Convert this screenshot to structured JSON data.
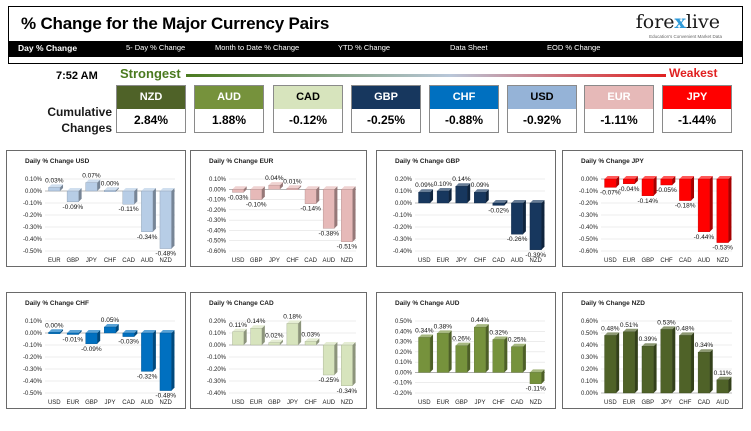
{
  "header": {
    "title": "% Change for the Major Currency Pairs"
  },
  "logo": {
    "brand_prefix": "fore",
    "brand_x": "x",
    "brand_suffix": "live",
    "tagline": "Education's Convenient Market Data"
  },
  "tabs": [
    {
      "label": "Day % Change",
      "active": true
    },
    {
      "label": "5- Day % Change",
      "active": false
    },
    {
      "label": "Month to Date % Change",
      "active": false
    },
    {
      "label": "YTD % Change",
      "active": false
    },
    {
      "label": "Data Sheet",
      "active": false
    },
    {
      "label": "EOD % Change",
      "active": false
    }
  ],
  "time": "7:52 AM",
  "strongest_label": "Strongest",
  "weakest_label": "Weakest",
  "cumulative_label_1": "Cumulative",
  "cumulative_label_2": "Changes",
  "cumulative": [
    {
      "code": "NZD",
      "value": "2.84%",
      "bg": "#4f6228",
      "fg": "#ffffff"
    },
    {
      "code": "AUD",
      "value": "1.88%",
      "bg": "#76923c",
      "fg": "#ffffff"
    },
    {
      "code": "CAD",
      "value": "-0.12%",
      "bg": "#d7e4bd",
      "fg": "#000000"
    },
    {
      "code": "GBP",
      "value": "-0.25%",
      "bg": "#17375e",
      "fg": "#ffffff"
    },
    {
      "code": "CHF",
      "value": "-0.88%",
      "bg": "#0070c0",
      "fg": "#ffffff"
    },
    {
      "code": "USD",
      "value": "-0.92%",
      "bg": "#95b3d7",
      "fg": "#000000"
    },
    {
      "code": "EUR",
      "value": "-1.11%",
      "bg": "#e6b9b8",
      "fg": "#ffffff"
    },
    {
      "code": "JPY",
      "value": "-1.44%",
      "bg": "#ff0000",
      "fg": "#ffffff"
    }
  ],
  "chart_data": [
    {
      "type": "bar",
      "title": "Daily % Change USD",
      "color": "#b7cde6",
      "categories": [
        "EUR",
        "GBP",
        "JPY",
        "CHF",
        "CAD",
        "AUD",
        "NZD"
      ],
      "values": [
        0.03,
        -0.09,
        0.07,
        0.0,
        -0.11,
        -0.34,
        -0.48
      ],
      "labels": [
        "0.03%",
        "-0.09%",
        "0.07%",
        "0.00%",
        "-0.11%",
        "-0.34%",
        "-0.48%"
      ],
      "ylim": [
        -0.5,
        0.1
      ],
      "ytick_labels": [
        "0.10%",
        "0.00%",
        "-0.10%",
        "-0.20%",
        "-0.30%",
        "-0.40%",
        "-0.50%"
      ]
    },
    {
      "type": "bar",
      "title": "Daily % Change EUR",
      "color": "#e6b9b8",
      "categories": [
        "USD",
        "GBP",
        "JPY",
        "CHF",
        "CAD",
        "AUD",
        "NZD"
      ],
      "values": [
        -0.03,
        -0.1,
        0.04,
        0.01,
        -0.14,
        -0.38,
        -0.51
      ],
      "labels": [
        "-0.03%",
        "-0.10%",
        "0.04%",
        "0.01%",
        "-0.14%",
        "-0.38%",
        "-0.51%"
      ],
      "ylim": [
        -0.6,
        0.1
      ],
      "ytick_labels": [
        "0.10%",
        "0.00%",
        "-0.10%",
        "-0.20%",
        "-0.30%",
        "-0.40%",
        "-0.50%",
        "-0.60%"
      ]
    },
    {
      "type": "bar",
      "title": "Daily % Change GBP",
      "color": "#17375e",
      "categories": [
        "USD",
        "EUR",
        "JPY",
        "CHF",
        "CAD",
        "AUD",
        "NZD"
      ],
      "values": [
        0.09,
        0.1,
        0.14,
        0.09,
        -0.02,
        -0.26,
        -0.39
      ],
      "labels": [
        "0.09%",
        "0.10%",
        "0.14%",
        "0.09%",
        "-0.02%",
        "-0.26%",
        "-0.39%"
      ],
      "ylim": [
        -0.4,
        0.2
      ],
      "ytick_labels": [
        "0.20%",
        "0.10%",
        "0.00%",
        "-0.10%",
        "-0.20%",
        "-0.30%",
        "-0.40%"
      ]
    },
    {
      "type": "bar",
      "title": "Daily % Change JPY",
      "color": "#ff0000",
      "categories": [
        "USD",
        "EUR",
        "GBP",
        "CHF",
        "CAD",
        "AUD",
        "NZD"
      ],
      "values": [
        -0.07,
        -0.04,
        -0.14,
        -0.05,
        -0.18,
        -0.44,
        -0.53
      ],
      "labels": [
        "-0.07%",
        "-0.04%",
        "-0.14%",
        "-0.05%",
        "-0.18%",
        "-0.44%",
        "-0.53%"
      ],
      "ylim": [
        -0.6,
        0.0
      ],
      "ytick_labels": [
        "0.00%",
        "-0.10%",
        "-0.20%",
        "-0.30%",
        "-0.40%",
        "-0.50%",
        "-0.60%"
      ]
    },
    {
      "type": "bar",
      "title": "Daily % Change CHF",
      "color": "#0070c0",
      "categories": [
        "USD",
        "EUR",
        "GBP",
        "JPY",
        "CAD",
        "AUD",
        "NZD"
      ],
      "values": [
        0.0,
        -0.01,
        -0.09,
        0.05,
        -0.03,
        -0.32,
        -0.48
      ],
      "labels": [
        "0.00%",
        "-0.01%",
        "-0.09%",
        "0.05%",
        "-0.03%",
        "-0.32%",
        "-0.48%"
      ],
      "ylim": [
        -0.5,
        0.1
      ],
      "ytick_labels": [
        "0.10%",
        "0.00%",
        "-0.10%",
        "-0.20%",
        "-0.30%",
        "-0.40%",
        "-0.50%"
      ]
    },
    {
      "type": "bar",
      "title": "Daily % Change CAD",
      "color": "#d7e4bd",
      "categories": [
        "USD",
        "EUR",
        "GBP",
        "JPY",
        "CHF",
        "AUD",
        "NZD"
      ],
      "values": [
        0.11,
        0.14,
        0.02,
        0.18,
        0.03,
        -0.25,
        -0.34
      ],
      "labels": [
        "0.11%",
        "0.14%",
        "0.02%",
        "0.18%",
        "0.03%",
        "-0.25%",
        "-0.34%"
      ],
      "ylim": [
        -0.4,
        0.2
      ],
      "ytick_labels": [
        "0.20%",
        "0.10%",
        "0.00%",
        "-0.10%",
        "-0.20%",
        "-0.30%",
        "-0.40%"
      ]
    },
    {
      "type": "bar",
      "title": "Daily % Change AUD",
      "color": "#76923c",
      "categories": [
        "USD",
        "EUR",
        "GBP",
        "JPY",
        "CHF",
        "CAD",
        "NZD"
      ],
      "values": [
        0.34,
        0.38,
        0.26,
        0.44,
        0.32,
        0.25,
        -0.11
      ],
      "labels": [
        "0.34%",
        "0.38%",
        "0.26%",
        "0.44%",
        "0.32%",
        "0.25%",
        "-0.11%"
      ],
      "ylim": [
        -0.2,
        0.5
      ],
      "ytick_labels": [
        "0.50%",
        "0.40%",
        "0.30%",
        "0.20%",
        "0.10%",
        "0.00%",
        "-0.10%",
        "-0.20%"
      ]
    },
    {
      "type": "bar",
      "title": "Daily % Change NZD",
      "color": "#4f6228",
      "categories": [
        "USD",
        "EUR",
        "GBP",
        "JPY",
        "CHF",
        "CAD",
        "AUD"
      ],
      "values": [
        0.48,
        0.51,
        0.39,
        0.53,
        0.48,
        0.34,
        0.11
      ],
      "labels": [
        "0.48%",
        "0.51%",
        "0.39%",
        "0.53%",
        "0.48%",
        "0.34%",
        "0.11%"
      ],
      "ylim": [
        0.0,
        0.6
      ],
      "ytick_labels": [
        "0.60%",
        "0.50%",
        "0.40%",
        "0.30%",
        "0.20%",
        "0.10%",
        "0.00%"
      ]
    }
  ]
}
